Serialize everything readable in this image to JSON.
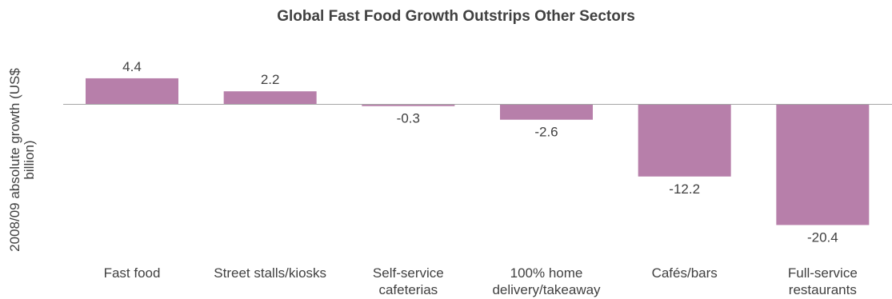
{
  "chart_data": {
    "type": "bar",
    "title": "Global Fast Food Growth Outstrips Other Sectors",
    "ylabel": "2008/09 absolute growth (US$ billion)",
    "xlabel": "",
    "categories": [
      "Fast food",
      "Street stalls/kiosks",
      "Self-service cafeterias",
      "100% home delivery/takeaway",
      "Cafés/bars",
      "Full-service restaurants"
    ],
    "category_lines": [
      [
        "Fast food"
      ],
      [
        "Street stalls/kiosks"
      ],
      [
        "Self-service",
        "cafeterias"
      ],
      [
        "100% home",
        "delivery/takeaway"
      ],
      [
        "Cafés/bars"
      ],
      [
        "Full-service",
        "restaurants"
      ]
    ],
    "values": [
      4.4,
      2.2,
      -0.3,
      -2.6,
      -12.2,
      -20.4
    ],
    "value_labels": [
      "4.4",
      "2.2",
      "-0.3",
      "-2.6",
      "-12.2",
      "-20.4"
    ],
    "ylabel_lines": [
      "2008/09 absolute growth (US$",
      "billion)"
    ],
    "ylim": [
      -20.4,
      4.4
    ],
    "grid": false,
    "legend": "none",
    "bar_color": "#b77faa",
    "axis_color": "#a6a6a6"
  }
}
